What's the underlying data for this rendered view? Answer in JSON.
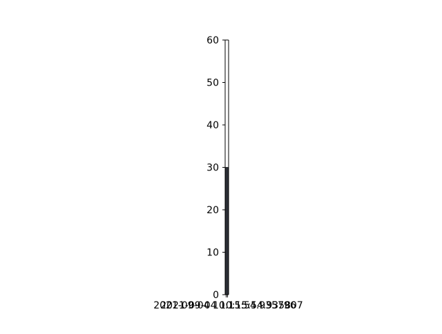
{
  "chart_data": {
    "type": "bar",
    "categories": [
      "2021-09-04 10:15:54.935796",
      "2021-09-04 10:15:54.935807"
    ],
    "values": [
      30,
      30
    ],
    "title": "",
    "xlabel": "",
    "ylabel": "",
    "ylim": [
      0,
      60
    ],
    "yticks": [
      "0",
      "10",
      "20",
      "30",
      "40",
      "50",
      "60"
    ],
    "xtick_labels": [
      "2021-09-04 10:15:54.935796",
      "2021-09-04 10:15:54.935807"
    ],
    "grid": false,
    "legend": "none",
    "colors": {
      "bar_fill": "#2e3138",
      "bar_edge": "#1f2125",
      "axis": "#000000"
    }
  }
}
